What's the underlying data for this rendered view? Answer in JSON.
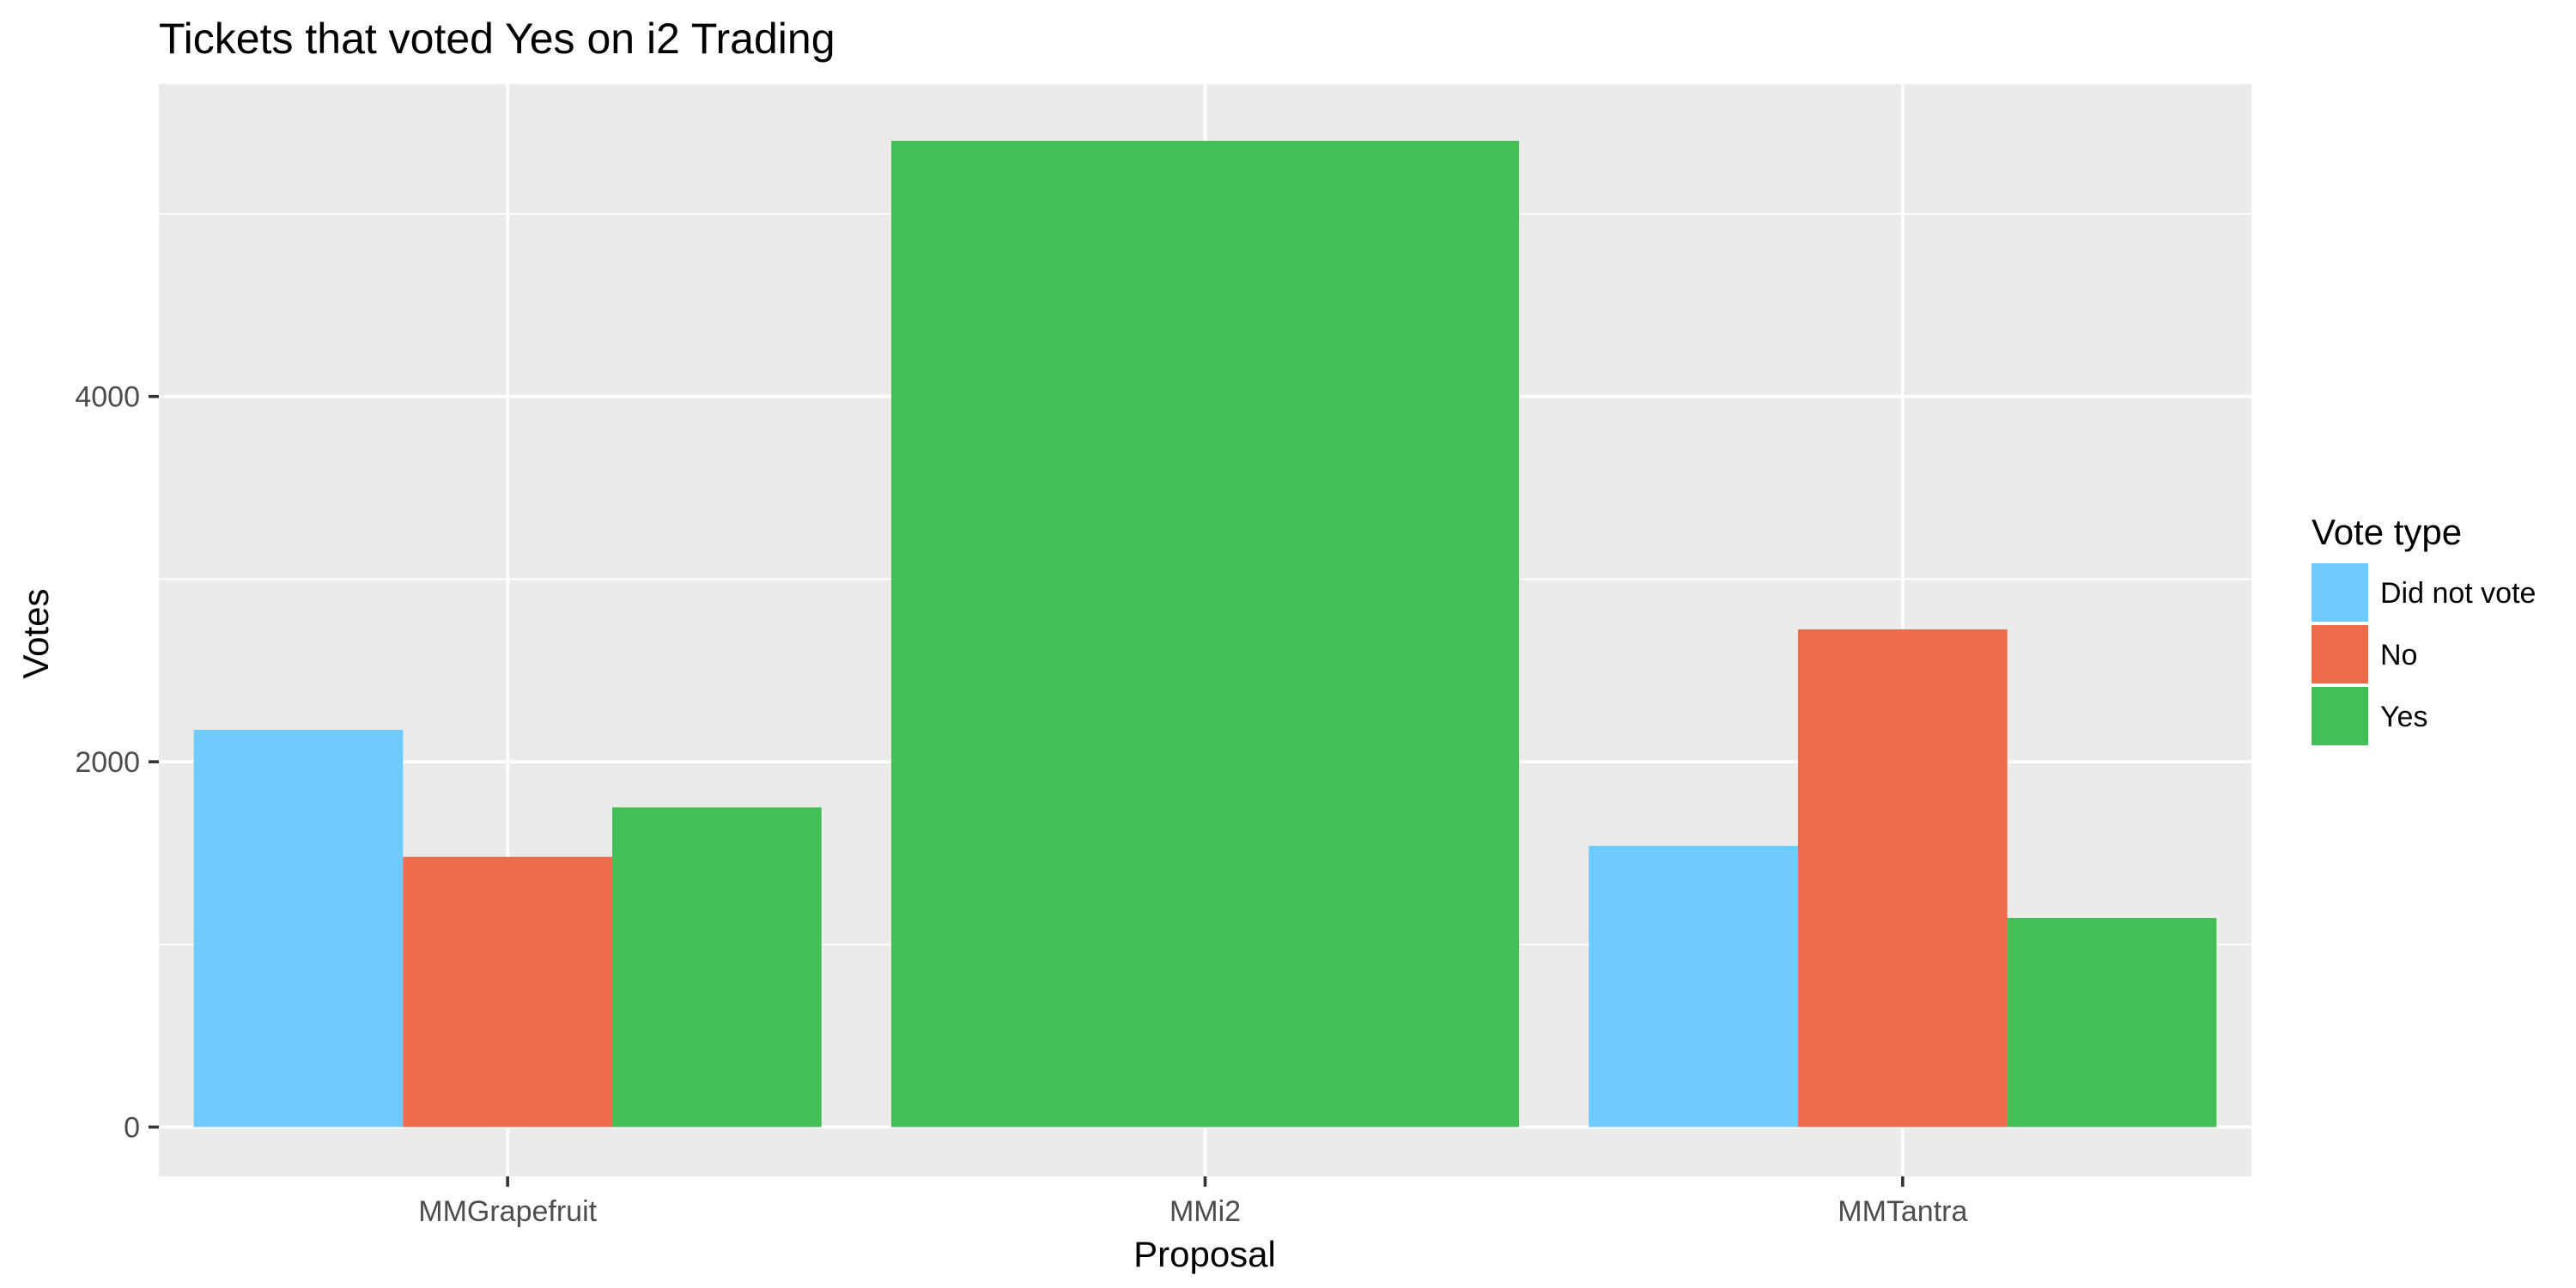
{
  "chart_data": {
    "type": "bar",
    "title": "Tickets that voted Yes on i2 Trading",
    "xlabel": "Proposal",
    "ylabel": "Votes",
    "categories": [
      "MMGrapefruit",
      "MMi2",
      "MMTantra"
    ],
    "ylim": [
      -270,
      5710
    ],
    "yticks": [
      0,
      2000,
      4000
    ],
    "grid": true,
    "legend": {
      "title": "Vote type",
      "placement": "right"
    },
    "series": [
      {
        "name": "Did not vote",
        "color": "#70CBFD",
        "values": [
          2175,
          null,
          1540
        ]
      },
      {
        "name": "No",
        "color": "#EE6C4C",
        "values": [
          1480,
          null,
          2725
        ]
      },
      {
        "name": "Yes",
        "color": "#42BF55",
        "values": [
          1750,
          5400,
          1145
        ]
      }
    ],
    "colors": {
      "panel_background": "#EBEBEB",
      "grid_line": "#FFFFFF",
      "tick_label": "#4D4D4D"
    }
  }
}
